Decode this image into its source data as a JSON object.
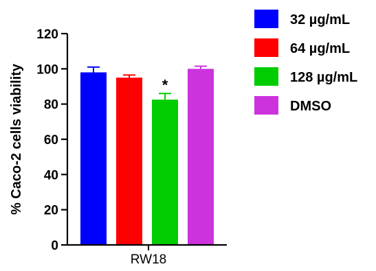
{
  "chart_data": {
    "type": "bar",
    "title": "",
    "xlabel": "",
    "ylabel": "% Caco-2 cells viability",
    "ylim": [
      0,
      120
    ],
    "yticks": [
      0,
      20,
      40,
      60,
      80,
      100,
      120
    ],
    "grid": false,
    "legend_position": "right",
    "group_label": "RW18",
    "categories": [
      "RW18"
    ],
    "series": [
      {
        "name": "32 µg/mL",
        "values": [
          98
        ],
        "error": [
          3
        ],
        "color": "#0000FF"
      },
      {
        "name": "64 µg/mL",
        "values": [
          95
        ],
        "error": [
          1.5
        ],
        "color": "#FF0000"
      },
      {
        "name": "128 µg/mL",
        "values": [
          82.5
        ],
        "error": [
          3.5
        ],
        "color": "#00CC00",
        "annotation": "*"
      },
      {
        "name": "DMSO",
        "values": [
          100
        ],
        "error": [
          1.5
        ],
        "color": "#CC33DD"
      }
    ]
  }
}
